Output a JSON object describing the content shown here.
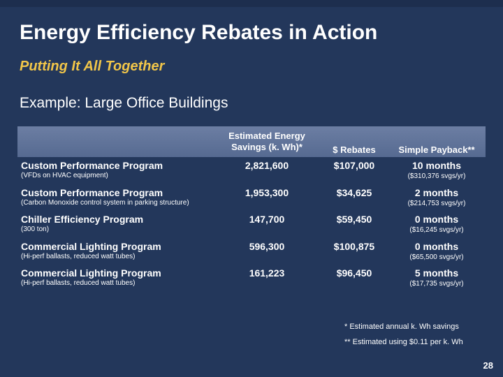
{
  "slide": {
    "title": "Energy Efficiency Rebates in Action",
    "subtitle": "Putting It All Together",
    "example": "Example: Large Office Buildings",
    "page_number": "28"
  },
  "table": {
    "headers": {
      "savings": "Estimated Energy Savings (k. Wh)*",
      "rebates": "$ Rebates",
      "payback": "Simple Payback**"
    },
    "rows": [
      {
        "program": "Custom Performance Program",
        "detail": "(VFDs on HVAC equipment)",
        "savings": "2,821,600",
        "rebates": "$107,000",
        "payback": "10 months",
        "svgs": "($310,376 svgs/yr)"
      },
      {
        "program": "Custom Performance Program",
        "detail": "(Carbon Monoxide control system in parking structure)",
        "savings": "1,953,300",
        "rebates": "$34,625",
        "payback": "2 months",
        "svgs": "($214,753 svgs/yr)"
      },
      {
        "program": "Chiller Efficiency Program",
        "detail": "(300 ton)",
        "savings": "147,700",
        "rebates": "$59,450",
        "payback": "0 months",
        "svgs": "($16,245 svgs/yr)"
      },
      {
        "program": "Commercial Lighting Program",
        "detail": "(Hi-perf ballasts, reduced watt tubes)",
        "savings": "596,300",
        "rebates": "$100,875",
        "payback": "0 months",
        "svgs": "($65,500 svgs/yr)"
      },
      {
        "program": "Commercial Lighting Program",
        "detail": "(Hi-perf ballasts, reduced watt tubes)",
        "savings": "161,223",
        "rebates": "$96,450",
        "payback": "5 months",
        "svgs": "($17,735 svgs/yr)"
      }
    ]
  },
  "notes": {
    "note1": "* Estimated annual k. Wh savings",
    "note2": "** Estimated using $0.11 per k. Wh"
  },
  "colors": {
    "background": "#23375b",
    "header": "#5f7299",
    "subtitle": "#f2c649"
  }
}
